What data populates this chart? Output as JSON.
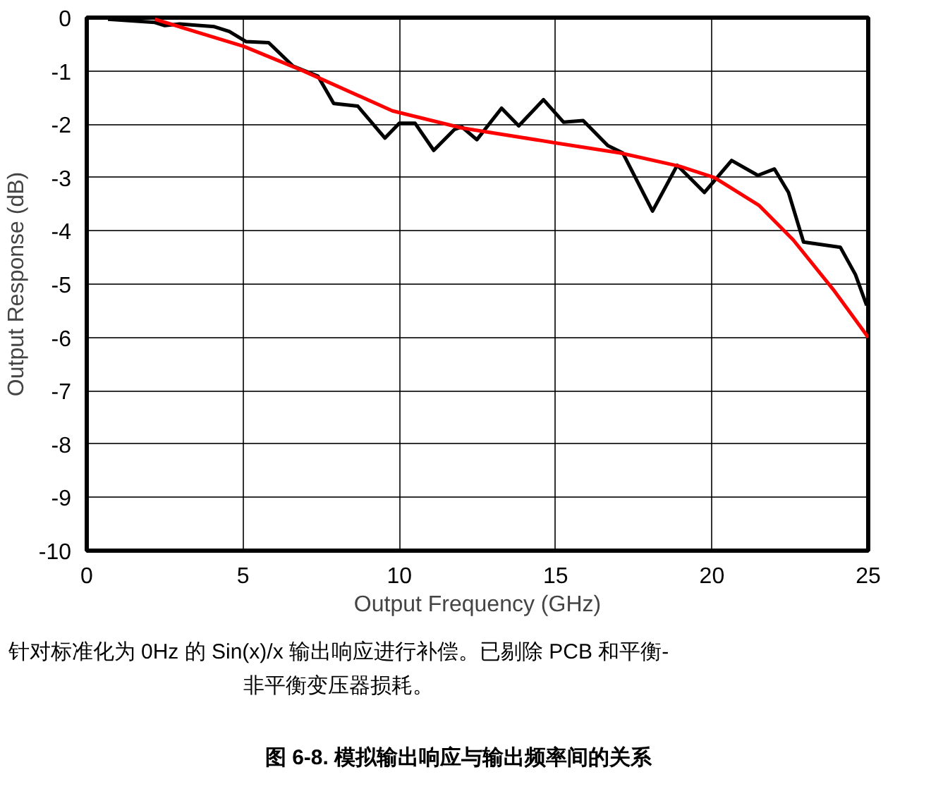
{
  "chart_data": {
    "type": "line",
    "xlabel": "Output Frequency (GHz)",
    "ylabel": "Output Response (dB)",
    "title": "图 6-8. 模拟输出响应与输出频率间的关系",
    "annotations": [
      "针对标准化为 0Hz 的 Sin(x)/x 输出响应进行补偿。已剔除 PCB 和平衡-非平衡变压器损耗。"
    ],
    "xlim": [
      0,
      25
    ],
    "ylim": [
      -10,
      0
    ],
    "xticks": [
      0,
      5,
      10,
      15,
      20,
      25
    ],
    "yticks": [
      0,
      -1,
      -2,
      -3,
      -4,
      -5,
      -6,
      -7,
      -8,
      -9,
      -10
    ],
    "grid": true,
    "marker": "none",
    "line_style": "solid",
    "series": [
      {
        "color": "#000000",
        "x": [
          0.68,
          2.18,
          2.5,
          2.97,
          4.08,
          4.56,
          5.1,
          5.82,
          6.6,
          7.4,
          7.9,
          8.67,
          9.54,
          10.0,
          10.5,
          11.1,
          11.76,
          12.0,
          12.48,
          13.27,
          13.82,
          14.61,
          15.25,
          15.88,
          16.67,
          17.15,
          18.1,
          18.89,
          19.76,
          20.63,
          21.47,
          22.0,
          22.45,
          22.93,
          24.11,
          24.59,
          24.95
        ],
        "values": [
          -0.03,
          -0.09,
          -0.15,
          -0.12,
          -0.17,
          -0.26,
          -0.45,
          -0.47,
          -0.91,
          -1.1,
          -1.61,
          -1.66,
          -2.26,
          -1.98,
          -1.98,
          -2.49,
          -2.1,
          -2.05,
          -2.29,
          -1.7,
          -2.03,
          -1.54,
          -1.96,
          -1.93,
          -2.4,
          -2.54,
          -3.63,
          -2.77,
          -3.28,
          -2.68,
          -2.96,
          -2.84,
          -3.28,
          -4.21,
          -4.31,
          -4.82,
          -5.4
        ]
      },
      {
        "color": "#ff0000",
        "x": [
          2.18,
          5.03,
          6.93,
          9.78,
          12.0,
          15.0,
          17.07,
          18.97,
          20.08,
          21.5,
          22.6,
          23.88,
          25.0
        ],
        "values": [
          -0.03,
          -0.54,
          -1.0,
          -1.75,
          -2.07,
          -2.35,
          -2.54,
          -2.79,
          -3.0,
          -3.52,
          -4.17,
          -5.1,
          -6.0
        ]
      }
    ]
  }
}
